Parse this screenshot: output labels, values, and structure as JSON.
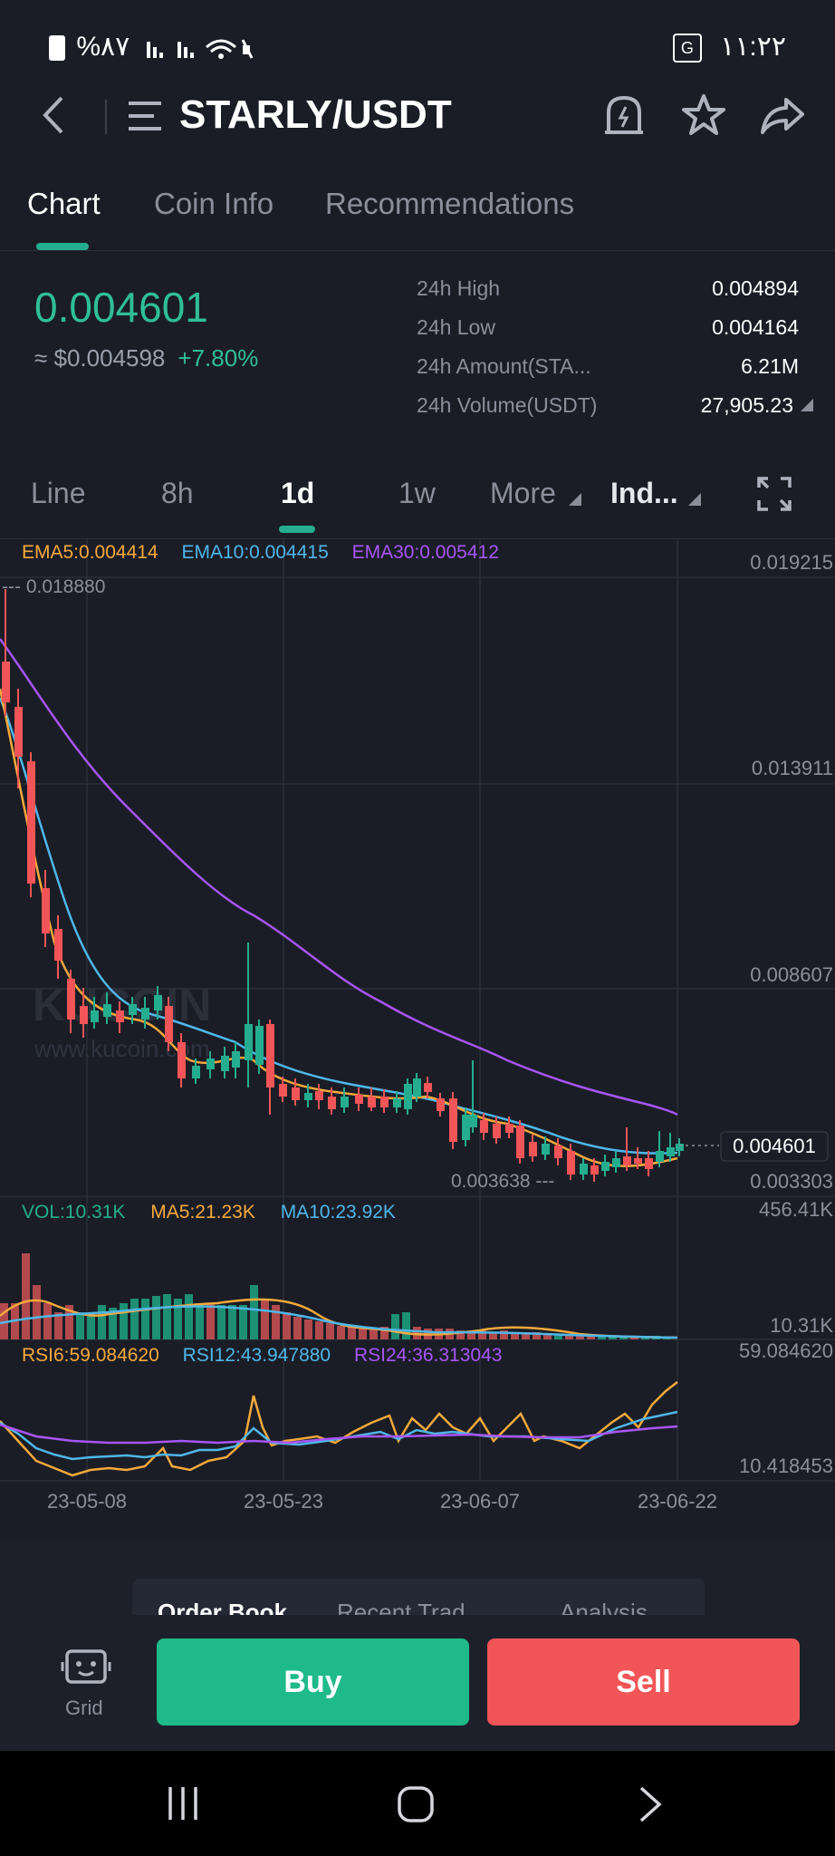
{
  "status": {
    "left": "%۸۷",
    "time": "۱۱:۲۲"
  },
  "header": {
    "pair": "STARLY/USDT"
  },
  "tabs": [
    "Chart",
    "Coin Info",
    "Recommendations"
  ],
  "price": {
    "last": "0.004601",
    "fiat": "≈ $0.004598",
    "change": "+7.80%"
  },
  "stats": [
    {
      "k": "24h High",
      "v": "0.004894"
    },
    {
      "k": "24h Low",
      "v": "0.004164"
    },
    {
      "k": "24h Amount(STA...",
      "v": "6.21M"
    },
    {
      "k": "24h Volume(USDT)",
      "v": "27,905.23"
    }
  ],
  "timeframes": {
    "line": "Line",
    "h8": "8h",
    "d1": "1d",
    "w1": "1w",
    "more": "More",
    "ind": "Ind..."
  },
  "legend": {
    "ema5": "EMA5:0.004414",
    "ema10": "EMA10:0.004415",
    "ema30": "EMA30:0.005412",
    "vol": "VOL:10.31K",
    "ma5": "MA5:21.23K",
    "ma10": "MA10:23.92K",
    "rsi6": "RSI6:59.084620",
    "rsi12": "RSI12:43.947880",
    "rsi24": "RSI24:36.313043"
  },
  "axis": {
    "p1": "0.019215",
    "p2": "0.013911",
    "p3": "0.008607",
    "p4": "0.003303",
    "current": "0.004601",
    "high_mark": "--- 0.018880",
    "low_mark": "0.003638 ---",
    "vol_top": "456.41K",
    "vol_cur": "10.31K",
    "rsi_top": "59.084620",
    "rsi_bot": "10.418453",
    "dates": [
      "23-05-08",
      "23-05-23",
      "23-06-07",
      "23-06-22"
    ]
  },
  "watermark": {
    "brand": "KUCOIN",
    "url": "www.kucoin.com"
  },
  "sheet": {
    "tabs": [
      "Order Book",
      "Recent Trad...",
      "Analysis"
    ]
  },
  "actions": {
    "grid": "Grid",
    "buy": "Buy",
    "sell": "Sell"
  },
  "colors": {
    "up": "#24ae8f",
    "down": "#f25557",
    "ema5": "#f6a93b",
    "ema10": "#4fb7ea",
    "ema30": "#a855f7"
  }
}
